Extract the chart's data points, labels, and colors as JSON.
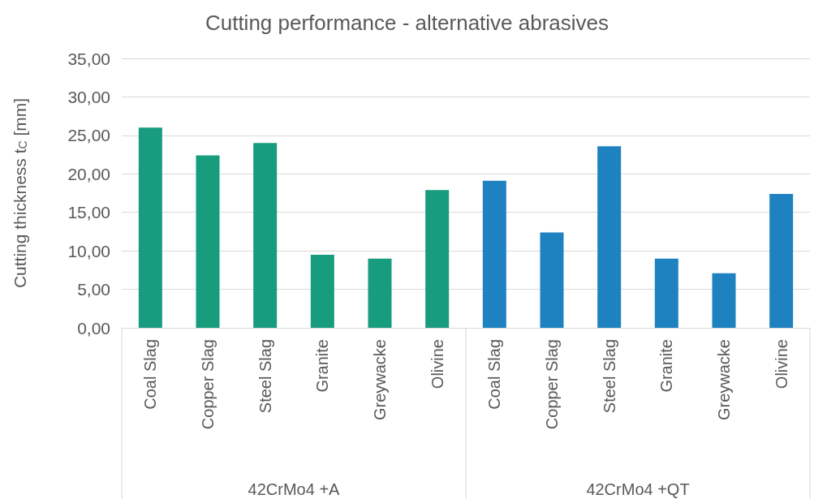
{
  "chart_data": {
    "type": "bar",
    "title": "Cutting performance - alternative abrasives",
    "ylabel": "Cutting thickness t$_{C}$ [mm]",
    "categories": [
      "Coal Slag",
      "Copper Slag",
      "Steel Slag",
      "Granite",
      "Greywacke",
      "Olivine",
      "Coal Slag",
      "Copper Slag",
      "Steel Slag",
      "Granite",
      "Greywacke",
      "Olivine"
    ],
    "values": [
      26.0,
      22.4,
      24.0,
      9.5,
      9.0,
      17.9,
      19.1,
      12.4,
      23.6,
      9.0,
      7.1,
      17.4
    ],
    "colors": [
      "#179c7d",
      "#179c7d",
      "#179c7d",
      "#179c7d",
      "#179c7d",
      "#179c7d",
      "#1f82c0",
      "#1f82c0",
      "#1f82c0",
      "#1f82c0",
      "#1f82c0",
      "#1f82c0"
    ],
    "annotations": [
      "42CrMo4 +A",
      "42CrMo4 +QT"
    ],
    "ylim": [
      0,
      35
    ],
    "yticks": [
      {
        "value": 0,
        "label": "0,00"
      },
      {
        "value": 5,
        "label": "5,00"
      },
      {
        "value": 10,
        "label": "10,00"
      },
      {
        "value": 15,
        "label": "15,00"
      },
      {
        "value": 20,
        "label": "20,00"
      },
      {
        "value": 25,
        "label": "25,00"
      },
      {
        "value": 30,
        "label": "30,00"
      },
      {
        "value": 35,
        "label": "35,00"
      }
    ],
    "grid": "y"
  }
}
